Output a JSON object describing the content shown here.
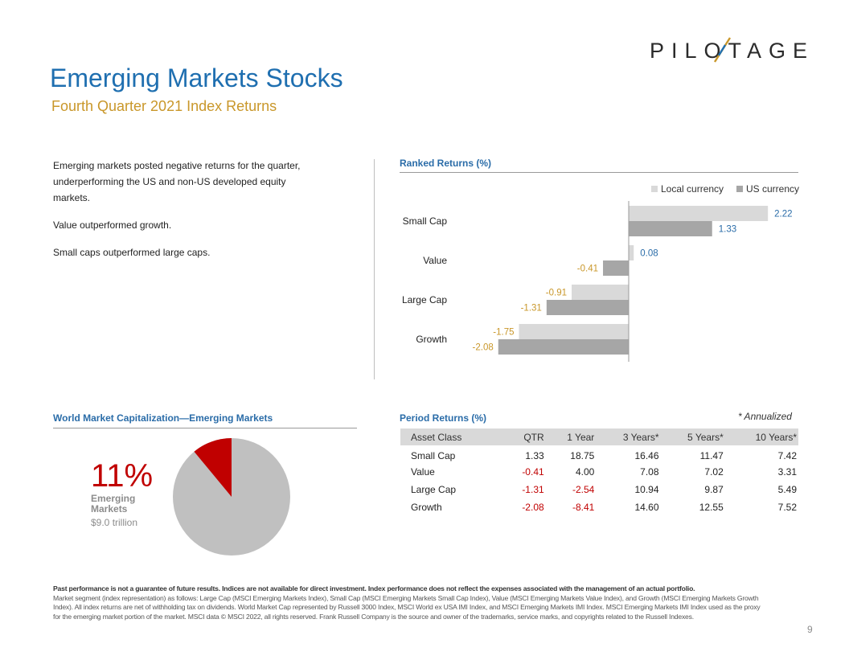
{
  "logo": {
    "text": "PILOTAGE"
  },
  "header": {
    "title": "Emerging Markets Stocks",
    "subtitle": "Fourth Quarter 2021 Index Returns"
  },
  "intro": {
    "p1": "Emerging markets posted negative returns for the quarter, underperforming the US and non-US developed equity markets.",
    "p2": "Value outperformed growth.",
    "p3": "Small caps outperformed large caps."
  },
  "ranked": {
    "title": "Ranked Returns (%)"
  },
  "chart_data": {
    "type": "bar",
    "orientation": "horizontal",
    "title": "Ranked Returns (%)",
    "categories": [
      "Small Cap",
      "Value",
      "Large Cap",
      "Growth"
    ],
    "series": [
      {
        "name": "Local currency",
        "values": [
          2.22,
          0.08,
          -0.91,
          -1.75
        ]
      },
      {
        "name": "US currency",
        "values": [
          1.33,
          -0.41,
          -1.31,
          -2.08
        ]
      }
    ],
    "legend_position": "top-right",
    "colors": {
      "local": "#d9d9d9",
      "us": "#a6a6a6",
      "positive_label": "#2a6ca8",
      "negative_label": "#c9972a"
    }
  },
  "world_cap": {
    "title": "World Market Capitalization—Emerging Markets",
    "percent_label": "11%",
    "share": 0.11,
    "name": "Emerging Markets",
    "value": "$9.0 trillion",
    "colors": {
      "slice": "#c00000",
      "rest": "#c0c0c0"
    }
  },
  "period": {
    "title": "Period Returns (%)",
    "annualized": "* Annualized",
    "headers": [
      "Asset Class",
      "QTR",
      "1 Year",
      "3 Years*",
      "5 Years*",
      "10 Years*"
    ],
    "rows": [
      [
        "Small Cap",
        "1.33",
        "18.75",
        "16.46",
        "11.47",
        "7.42"
      ],
      [
        "Value",
        "-0.41",
        "4.00",
        "7.08",
        "7.02",
        "3.31"
      ],
      [
        "Large Cap",
        "-1.31",
        "-2.54",
        "10.94",
        "9.87",
        "5.49"
      ],
      [
        "Growth",
        "-2.08",
        "-8.41",
        "14.60",
        "12.55",
        "7.52"
      ]
    ]
  },
  "footer": {
    "bold": "Past performance is not a guarantee of future results. Indices are not available for direct investment. Index performance does not reflect the expenses associated with the management of an actual portfolio.",
    "body": "Market segment (index representation) as follows: Large Cap (MSCI Emerging Markets Index), Small Cap (MSCI Emerging Markets Small Cap Index), Value (MSCI Emerging Markets Value Index), and Growth (MSCI Emerging Markets Growth Index). All index returns are net of withholding tax on dividends. World Market Cap represented by Russell 3000 Index, MSCI World ex USA IMI Index, and MSCI Emerging Markets IMI Index. MSCI Emerging Markets IMI Index used as the proxy for the emerging market portion of the market. MSCI data © MSCI 2022, all rights reserved. Frank Russell Company is the source and owner of the trademarks, service marks, and copyrights related to the Russell Indexes.",
    "page_number": "9"
  }
}
